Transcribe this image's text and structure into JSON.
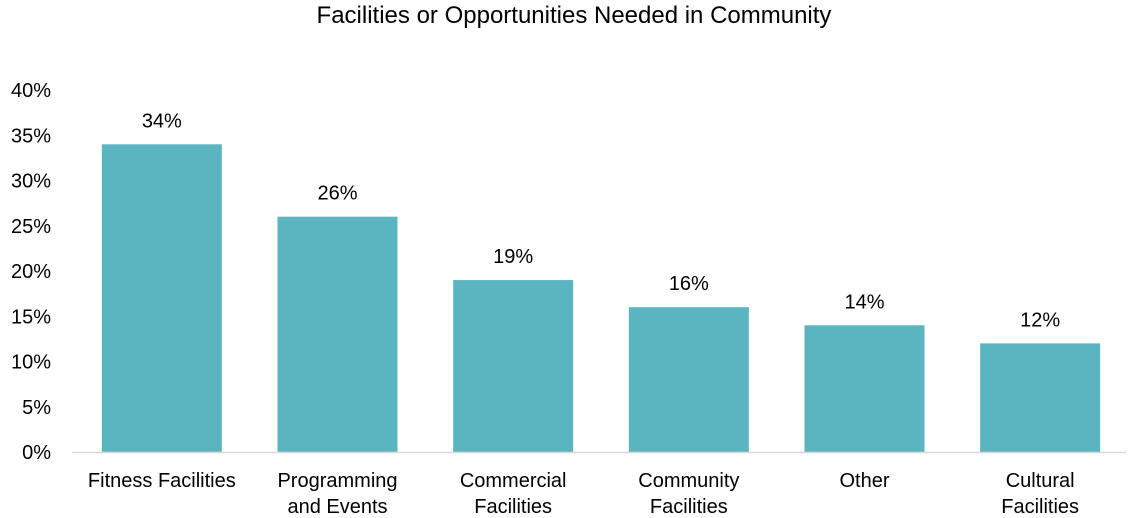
{
  "chart_data": {
    "type": "bar",
    "title": "Facilities or Opportunities Needed in Community",
    "xlabel": "",
    "ylabel": "",
    "categories": [
      [
        "Fitness Facilities"
      ],
      [
        "Programming",
        "and Events"
      ],
      [
        "Commercial",
        "Facilities"
      ],
      [
        "Community",
        "Facilities"
      ],
      [
        "Other"
      ],
      [
        "Cultural",
        "Facilities"
      ]
    ],
    "values": [
      34,
      26,
      19,
      16,
      14,
      12
    ],
    "value_labels": [
      "34%",
      "26%",
      "19%",
      "16%",
      "14%",
      "12%"
    ],
    "ylim": [
      0,
      40
    ],
    "yticks": [
      0,
      5,
      10,
      15,
      20,
      25,
      30,
      35,
      40
    ],
    "ytick_labels": [
      "0%",
      "5%",
      "10%",
      "15%",
      "20%",
      "25%",
      "30%",
      "35%",
      "40%"
    ],
    "grid": false,
    "legend": "none",
    "bar_color": "#5BB5C0",
    "axis_color": "#D9D9D9"
  }
}
